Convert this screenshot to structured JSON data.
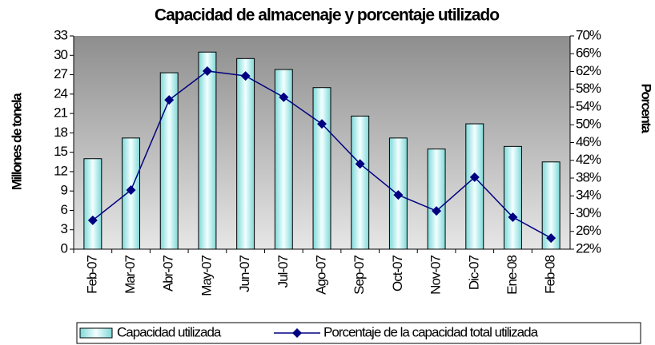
{
  "chart_data": {
    "type": "bar_line",
    "title": "Capacidad de almacenaje y porcentaje utilizado",
    "y_label": "Millones de tonela",
    "y2_label": "Porcenta",
    "categories": [
      "Feb-07",
      "Mar-07",
      "Abr-07",
      "May-07",
      "Jun-07",
      "Jul-07",
      "Ago-07",
      "Sep-07",
      "Oct-07",
      "Nov-07",
      "Dic-07",
      "Ene-08",
      "Feb-08"
    ],
    "series": [
      {
        "name": "Capacidad utilizada",
        "type": "bar",
        "color": "#ccf5f5",
        "values": [
          14.0,
          17.2,
          27.3,
          30.5,
          29.5,
          27.8,
          25.0,
          20.6,
          17.2,
          15.5,
          19.4,
          15.9,
          13.5
        ]
      },
      {
        "name": "Porcentaje de la capacidad total utilizada",
        "type": "line",
        "axis": "y2",
        "color": "#000080",
        "values": [
          28.5,
          35.3,
          55.6,
          62.1,
          61.0,
          56.2,
          50.2,
          41.2,
          34.2,
          30.6,
          38.2,
          29.2,
          24.5
        ]
      }
    ],
    "ylim": [
      0,
      33
    ],
    "yticks": [
      0,
      3,
      6,
      9,
      12,
      15,
      18,
      21,
      24,
      27,
      30,
      33
    ],
    "y2lim": [
      22,
      70
    ],
    "y2ticks": [
      {
        "value": 22,
        "label": "22%"
      },
      {
        "value": 26,
        "label": "26%"
      },
      {
        "value": 30,
        "label": "30%"
      },
      {
        "value": 34,
        "label": "34%"
      },
      {
        "value": 38,
        "label": "38%"
      },
      {
        "value": 42,
        "label": "42%"
      },
      {
        "value": 46,
        "label": "46%"
      },
      {
        "value": 50,
        "label": "50%"
      },
      {
        "value": 54,
        "label": "54%"
      },
      {
        "value": 58,
        "label": "58%"
      },
      {
        "value": 62,
        "label": "62%"
      },
      {
        "value": 66,
        "label": "66%"
      },
      {
        "value": 70,
        "label": "70%"
      }
    ],
    "legend": "bottom"
  }
}
